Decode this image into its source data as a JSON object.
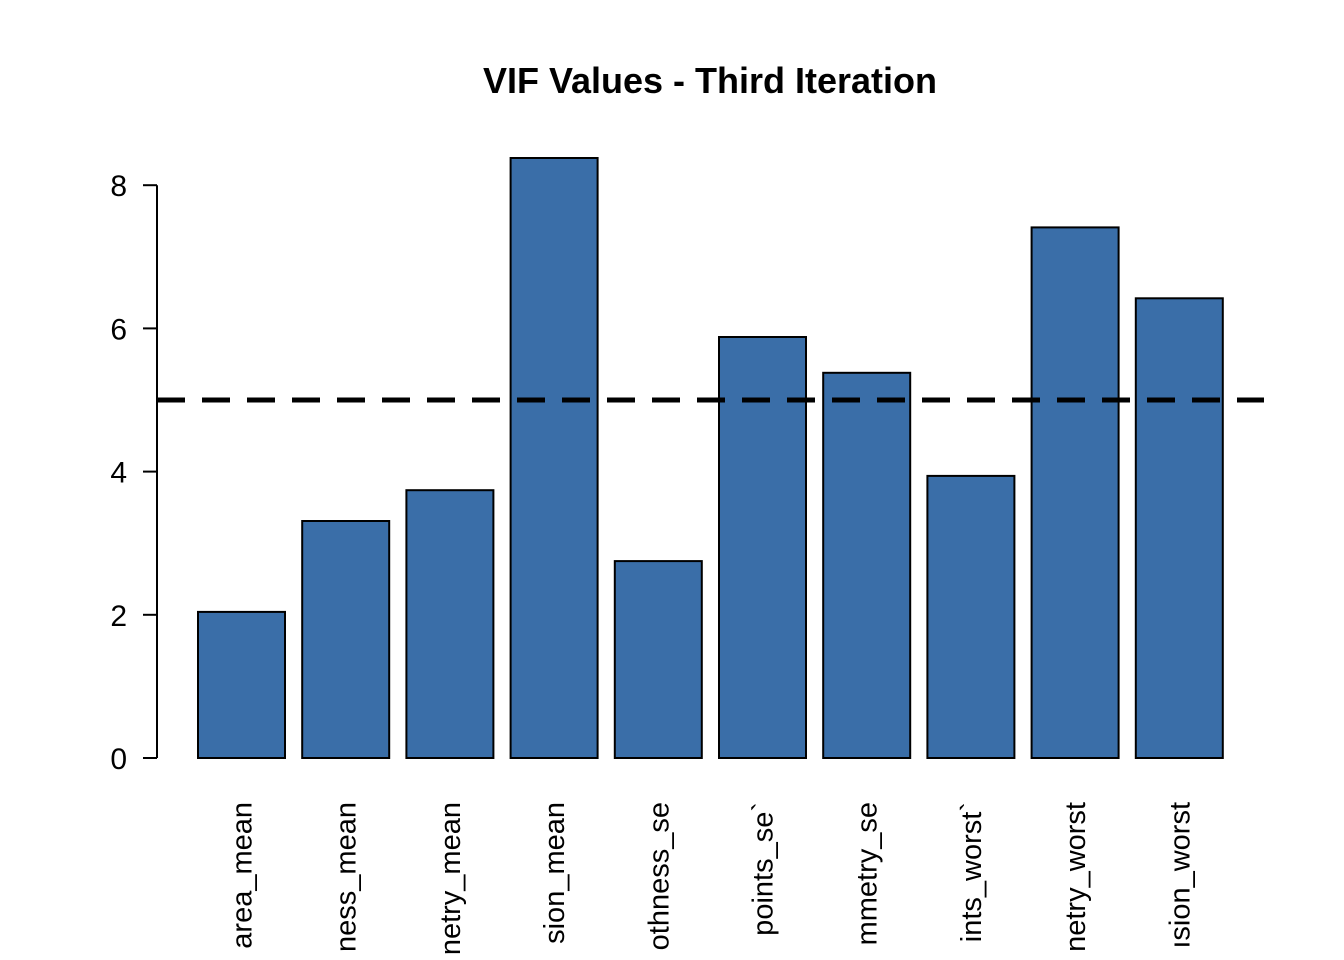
{
  "chart_data": {
    "type": "bar",
    "title": "VIF Values - Third Iteration",
    "xlabel": "",
    "ylabel": "",
    "ylim": [
      0,
      8.4
    ],
    "yticks": [
      0,
      2,
      4,
      6,
      8
    ],
    "categories": [
      "area_mean",
      "ness_mean",
      "netry_mean",
      "sion_mean",
      "othness_se",
      "points_se`",
      "mmetry_se",
      "ints_worst`",
      "netry_worst",
      "ısion_worst"
    ],
    "values": [
      2.04,
      3.31,
      3.74,
      8.38,
      2.75,
      5.88,
      5.38,
      3.94,
      7.41,
      6.42
    ],
    "bar_color": "#3A6EA8",
    "bar_border_color": "#000000",
    "reference_line": {
      "y": 5,
      "style": "dashed",
      "color": "#000000"
    },
    "grid": false,
    "legend": "none"
  }
}
